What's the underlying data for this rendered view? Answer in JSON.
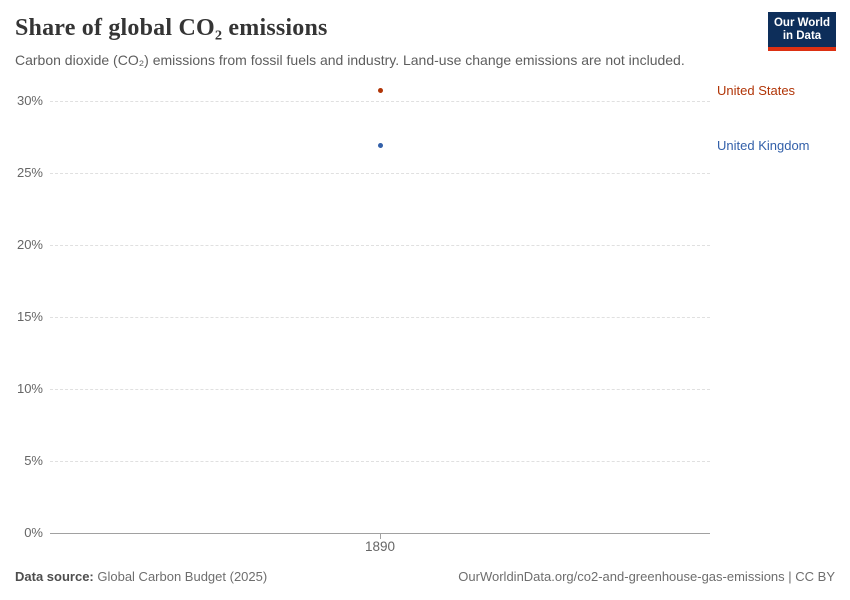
{
  "header": {
    "title": "Share of global CO₂ emissions",
    "subtitle": "Carbon dioxide (CO₂) emissions from fossil fuels and industry. Land-use change emissions are not included.",
    "logo": {
      "line1": "Our World",
      "line2": "in Data",
      "bg_color": "#0d2e5a",
      "accent_color": "#dc3012"
    }
  },
  "chart_data": {
    "type": "scatter",
    "x": [
      1890
    ],
    "series": [
      {
        "name": "United States",
        "values": [
          30.7
        ],
        "color": "#b13507"
      },
      {
        "name": "United Kingdom",
        "values": [
          26.9
        ],
        "color": "#3360a9"
      }
    ],
    "title": "Share of global CO₂ emissions",
    "xlabel": "",
    "ylabel": "",
    "ylim": [
      0,
      31
    ],
    "yticks": [
      0,
      5,
      10,
      15,
      20,
      25,
      30
    ],
    "ytick_suffix": "%",
    "xticks": [
      1890
    ],
    "grid": "horizontal-dashed",
    "legend_position": "right-entity-labels",
    "colors": {
      "gridline": "#e0e0e0",
      "axis": "#a1a1a1",
      "tick_text": "#666666"
    }
  },
  "footer": {
    "source_label": "Data source:",
    "source_value": " Global Carbon Budget (2025)",
    "attribution": "OurWorldinData.org/co2-and-greenhouse-gas-emissions | CC BY"
  }
}
